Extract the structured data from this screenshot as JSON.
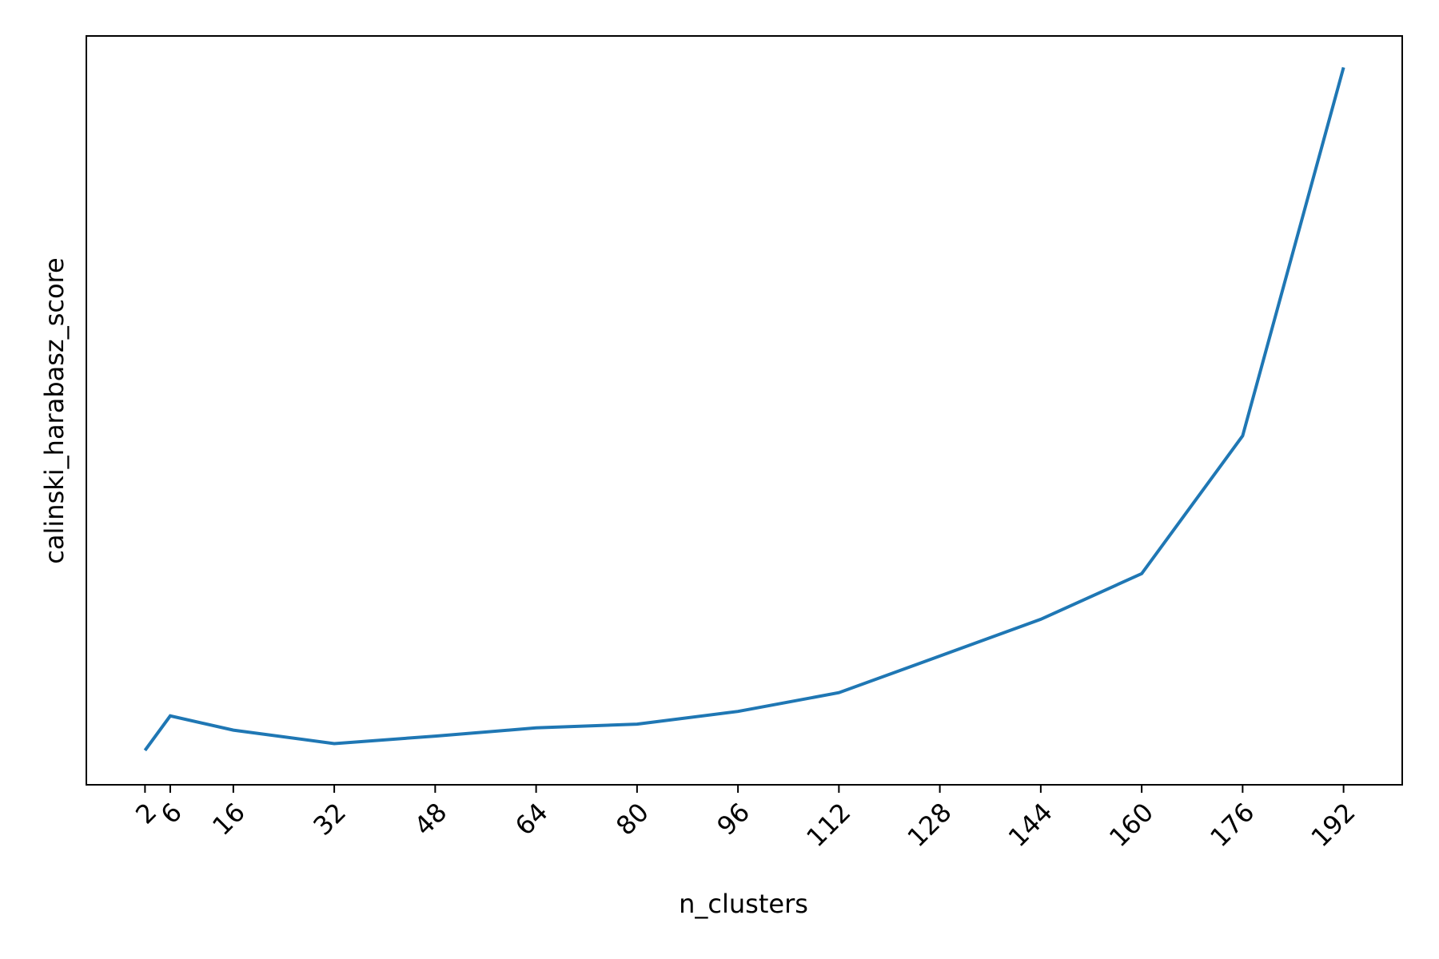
{
  "chart_data": {
    "type": "line",
    "xlabel": "n_clusters",
    "ylabel": "calinski_harabasz_score",
    "x": [
      2,
      6,
      16,
      32,
      48,
      64,
      80,
      96,
      112,
      128,
      144,
      160,
      176,
      192
    ],
    "series": [
      {
        "color": "#1f77b4",
        "values": [
          4.6,
          9.2,
          7.3,
          5.5,
          6.5,
          7.6,
          8.1,
          9.8,
          12.3,
          17.2,
          22.1,
          28.2,
          46.6,
          95.8
        ]
      }
    ],
    "xlim": [
      -7.3,
      201.3
    ],
    "ylim": [
      0,
      100
    ],
    "xticks": [
      2,
      6,
      16,
      32,
      48,
      64,
      80,
      96,
      112,
      128,
      144,
      160,
      176,
      192
    ]
  }
}
